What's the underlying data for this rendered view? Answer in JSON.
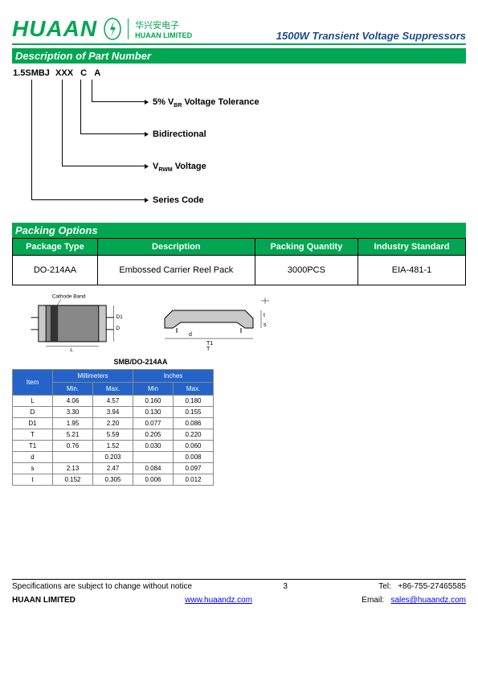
{
  "header": {
    "logo_text": "HUAAN",
    "logo_cn": "华兴安电子",
    "logo_en": "HUAAN LIMITED",
    "right": "1500W Transient Voltage Suppressors"
  },
  "sections": {
    "partnum": "Description of Part Number",
    "packing": "Packing Options"
  },
  "partnum": {
    "seg1": "1.5SMBJ",
    "seg2": "XXX",
    "seg3": "C",
    "seg4": "A",
    "desc1": "5% VBR Voltage Tolerance",
    "desc2": "Bidirectional",
    "desc3": "VRWM Voltage",
    "desc4": "Series Code"
  },
  "packing_table": {
    "headers": [
      "Package Type",
      "Description",
      "Packing   Quantity",
      "Industry Standard"
    ],
    "row": [
      "DO-214AA",
      "Embossed Carrier Reel Pack",
      "3000PCS",
      "EIA-481-1"
    ]
  },
  "pkg_label": "SMB/DO-214AA",
  "cathode_label": "Cathode Band",
  "dim_table": {
    "header_top": [
      "Item",
      "Millimeters",
      "Inches"
    ],
    "header_sub": [
      "Min.",
      "Max.",
      "Min",
      "Max."
    ],
    "rows": [
      [
        "L",
        "4.06",
        "4.57",
        "0.160",
        "0.180"
      ],
      [
        "D",
        "3.30",
        "3.94",
        "0.130",
        "0.155"
      ],
      [
        "D1",
        "1.95",
        "2.20",
        "0.077",
        "0.086"
      ],
      [
        "T",
        "5.21",
        "5.59",
        "0.205",
        "0.220"
      ],
      [
        "T1",
        "0.76",
        "1.52",
        "0.030",
        "0.060"
      ],
      [
        "d",
        "",
        "0.203",
        "",
        "0.008"
      ],
      [
        "s",
        "2.13",
        "2.47",
        "0.084",
        "0.097"
      ],
      [
        "t",
        "0.152",
        "0.305",
        "0.006",
        "0.012"
      ]
    ]
  },
  "footer": {
    "notice": "Specifications are subject to change without notice",
    "page": "3",
    "tel_label": "Tel:",
    "tel": "+86-755-27465585",
    "company": "HUAAN LIMITED",
    "web": "www.huaandz.com",
    "email_label": "Email:",
    "email": "sales@huaandz.com"
  },
  "colors": {
    "green": "#00a651",
    "blue": "#2563c9",
    "navy": "#1a4b8c"
  }
}
